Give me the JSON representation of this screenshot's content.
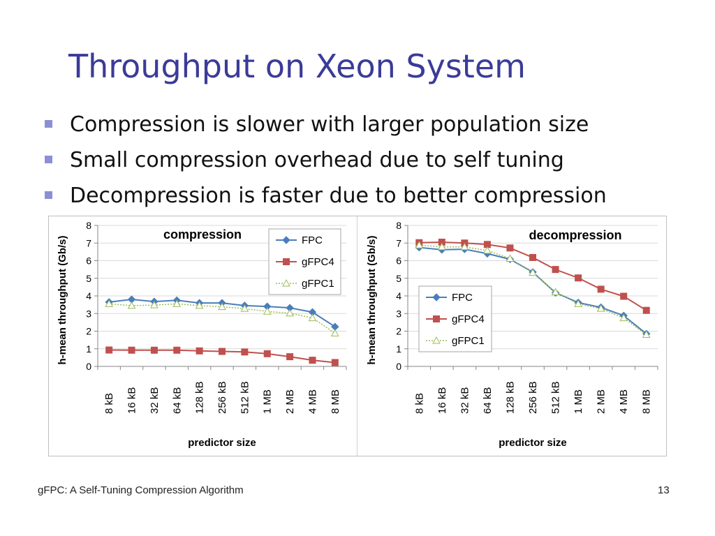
{
  "slide": {
    "title": "Throughput on Xeon System",
    "bullets": [
      "Compression is slower with larger population size",
      "Small compression overhead due to self tuning",
      "Decompression is faster due to better compression"
    ],
    "footer": "gFPC: A Self-Tuning Compression Algorithm",
    "page_number": "13"
  },
  "colors": {
    "title": "#3b3b98",
    "bullet": "#8d8fd4",
    "FPC": "#4a7ebb",
    "gFPC4": "#c0504d",
    "gFPC1": "#9bbb59"
  },
  "chart_data": [
    {
      "type": "line",
      "title": "compression",
      "xlabel": "predictor size",
      "ylabel": "h-mean throughput (Gb/s)",
      "ylim": [
        0,
        8
      ],
      "yticks": [
        "0",
        "1",
        "2",
        "3",
        "4",
        "5",
        "6",
        "7",
        "8"
      ],
      "grid": true,
      "legend": "top-right",
      "categories": [
        "8 kB",
        "16 kB",
        "32 kB",
        "64 kB",
        "128 kB",
        "256 kB",
        "512 kB",
        "1 MB",
        "2 MB",
        "4 MB",
        "8 MB"
      ],
      "series": [
        {
          "name": "FPC",
          "values": [
            3.65,
            3.8,
            3.68,
            3.75,
            3.6,
            3.6,
            3.45,
            3.4,
            3.32,
            3.08,
            2.25
          ]
        },
        {
          "name": "gFPC4",
          "values": [
            0.93,
            0.92,
            0.92,
            0.92,
            0.88,
            0.85,
            0.82,
            0.72,
            0.55,
            0.35,
            0.22
          ]
        },
        {
          "name": "gFPC1",
          "values": [
            3.55,
            3.45,
            3.48,
            3.55,
            3.45,
            3.38,
            3.28,
            3.12,
            3.02,
            2.75,
            1.88
          ]
        }
      ]
    },
    {
      "type": "line",
      "title": "decompression",
      "xlabel": "predictor size",
      "ylabel": "h-mean throughput (Gb/s)",
      "ylim": [
        0,
        8
      ],
      "yticks": [
        "0",
        "1",
        "2",
        "3",
        "4",
        "5",
        "6",
        "7",
        "8"
      ],
      "grid": true,
      "legend": "center-left",
      "categories": [
        "8 kB",
        "16 kB",
        "32 kB",
        "64 kB",
        "128 kB",
        "256 kB",
        "512 kB",
        "1 MB",
        "2 MB",
        "4 MB",
        "8 MB"
      ],
      "series": [
        {
          "name": "FPC",
          "values": [
            6.75,
            6.62,
            6.65,
            6.4,
            6.08,
            5.35,
            4.18,
            3.62,
            3.35,
            2.88,
            1.85
          ]
        },
        {
          "name": "gFPC4",
          "values": [
            7.02,
            7.05,
            7.0,
            6.92,
            6.72,
            6.18,
            5.5,
            5.02,
            4.38,
            3.98,
            3.18
          ]
        },
        {
          "name": "gFPC1",
          "values": [
            6.88,
            6.78,
            6.78,
            6.58,
            6.12,
            5.32,
            4.22,
            3.55,
            3.28,
            2.75,
            1.8
          ]
        }
      ]
    }
  ]
}
